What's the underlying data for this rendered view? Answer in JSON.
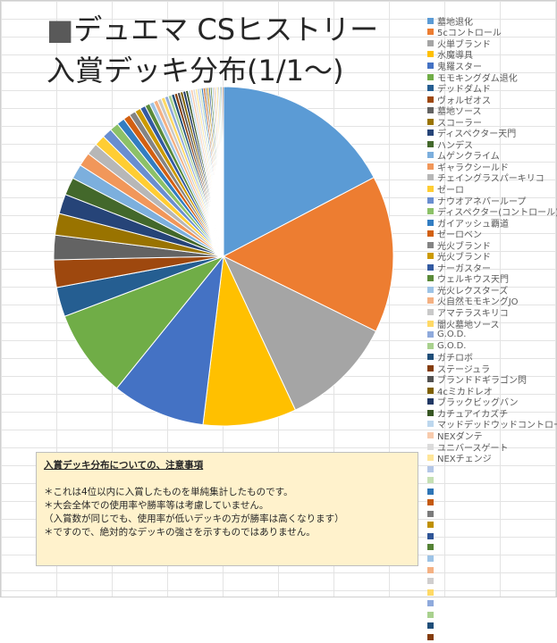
{
  "title": {
    "prefix": "■",
    "line1": "デュエマ CSヒストリー",
    "line2": "入賞デッキ分布(1/1～)"
  },
  "note": {
    "heading": "入賞デッキ分布についての、注意事項",
    "lines": [
      "＊これは4位以内に入賞したものを単純集計したものです。",
      "＊大会全体での使用率や勝率等は考慮していません。",
      "（入賞数が同じでも、使用率が低いデッキの方が勝率は高くなります）",
      "＊ですので、絶対的なデッキの強さを示すものではありません。"
    ]
  },
  "chart_data": {
    "type": "pie",
    "title": "",
    "series": [
      {
        "name": "墓地退化",
        "value": 18.5,
        "color": "#5b9bd5"
      },
      {
        "name": "5cコントロール",
        "value": 16.0,
        "color": "#ed7d31"
      },
      {
        "name": "火単ブランド",
        "value": 11.5,
        "color": "#a5a5a5"
      },
      {
        "name": "水魔導具",
        "value": 9.5,
        "color": "#ffc000"
      },
      {
        "name": "鬼羅スター",
        "value": 9.5,
        "color": "#4472c4"
      },
      {
        "name": "モモキングダム退化",
        "value": 9.0,
        "color": "#70ad47"
      },
      {
        "name": "デッドダムド",
        "value": 3.0,
        "color": "#255e91"
      },
      {
        "name": "ヴォルゼオス",
        "value": 2.8,
        "color": "#9e480e"
      },
      {
        "name": "墓地ソース",
        "value": 2.5,
        "color": "#636363"
      },
      {
        "name": "スコーラー",
        "value": 2.2,
        "color": "#997300"
      },
      {
        "name": "ディスペクター天門",
        "value": 2.0,
        "color": "#264478"
      },
      {
        "name": "ハンデス",
        "value": 1.8,
        "color": "#43682b"
      },
      {
        "name": "ムゲンクライム",
        "value": 1.5,
        "color": "#7cafdd"
      },
      {
        "name": "ギャラクシールド",
        "value": 1.4,
        "color": "#f1975a"
      },
      {
        "name": "チェイングラスパーキリコ",
        "value": 1.2,
        "color": "#b7b7b7"
      },
      {
        "name": "ゼーロ",
        "value": 1.1,
        "color": "#ffcd33"
      },
      {
        "name": "ナウオアネバーループ",
        "value": 1.0,
        "color": "#698ed0"
      },
      {
        "name": "ディスペクター(コントロール)",
        "value": 0.9,
        "color": "#8cc168"
      },
      {
        "name": "ガイアッシュ覇道",
        "value": 0.8,
        "color": "#327dc2"
      },
      {
        "name": "ゼーロベン",
        "value": 0.7,
        "color": "#d26012"
      },
      {
        "name": "光火ブランド",
        "value": 0.65,
        "color": "#848484"
      },
      {
        "name": "光火ブランド",
        "value": 0.6,
        "color": "#cc9a00"
      },
      {
        "name": "ナーガスター",
        "value": 0.55,
        "color": "#335aa1"
      },
      {
        "name": "ウェルキウス天門",
        "value": 0.5,
        "color": "#5a8a39"
      },
      {
        "name": "光火レクスターズ",
        "value": 0.45,
        "color": "#9dc3e6"
      },
      {
        "name": "火自然モモキングJO",
        "value": 0.42,
        "color": "#f4b183"
      },
      {
        "name": "アマテラスキリコ",
        "value": 0.4,
        "color": "#c9c9c9"
      },
      {
        "name": "闇火墓地ソース",
        "value": 0.38,
        "color": "#ffd966"
      },
      {
        "name": "G.O.D.",
        "value": 0.36,
        "color": "#8faadc"
      },
      {
        "name": "G.O.D.",
        "value": 0.34,
        "color": "#a9d18e"
      },
      {
        "name": "ガチロボ",
        "value": 0.32,
        "color": "#1f4e79"
      },
      {
        "name": "ステージュラ",
        "value": 0.3,
        "color": "#843c0c"
      },
      {
        "name": "ブランドドギラゴン閃",
        "value": 0.3,
        "color": "#525252"
      },
      {
        "name": "4cミカドレオ",
        "value": 0.28,
        "color": "#7f6000"
      },
      {
        "name": "ブラックビッグバン",
        "value": 0.28,
        "color": "#203864"
      },
      {
        "name": "カチュアイカズチ",
        "value": 0.26,
        "color": "#375623"
      },
      {
        "name": "マッドデッドウッドコントロール",
        "value": 0.25,
        "color": "#bdd7ee"
      },
      {
        "name": "NEXダンテ",
        "value": 0.24,
        "color": "#f8cbad"
      },
      {
        "name": "ユニバースゲート",
        "value": 0.23,
        "color": "#dbdbdb"
      },
      {
        "name": "NEXチェンジ",
        "value": 0.22,
        "color": "#ffe699"
      },
      {
        "name": "",
        "value": 0.2,
        "color": "#b4c7e7"
      },
      {
        "name": "",
        "value": 0.2,
        "color": "#c5e0b4"
      },
      {
        "name": "",
        "value": 0.19,
        "color": "#2e75b6"
      },
      {
        "name": "",
        "value": 0.19,
        "color": "#c55a11"
      },
      {
        "name": "",
        "value": 0.18,
        "color": "#7b7b7b"
      },
      {
        "name": "",
        "value": 0.18,
        "color": "#bf9000"
      },
      {
        "name": "",
        "value": 0.17,
        "color": "#2f5597"
      },
      {
        "name": "",
        "value": 0.17,
        "color": "#548235"
      },
      {
        "name": "",
        "value": 0.16,
        "color": "#9dc3e6"
      },
      {
        "name": "",
        "value": 0.16,
        "color": "#f4b183"
      },
      {
        "name": "",
        "value": 0.15,
        "color": "#d0cece"
      },
      {
        "name": "",
        "value": 0.15,
        "color": "#ffd966"
      },
      {
        "name": "",
        "value": 0.14,
        "color": "#8faadc"
      },
      {
        "name": "",
        "value": 0.14,
        "color": "#a9d18e"
      },
      {
        "name": "",
        "value": 0.13,
        "color": "#1f4e79"
      },
      {
        "name": "",
        "value": 0.13,
        "color": "#843c0c"
      }
    ]
  }
}
